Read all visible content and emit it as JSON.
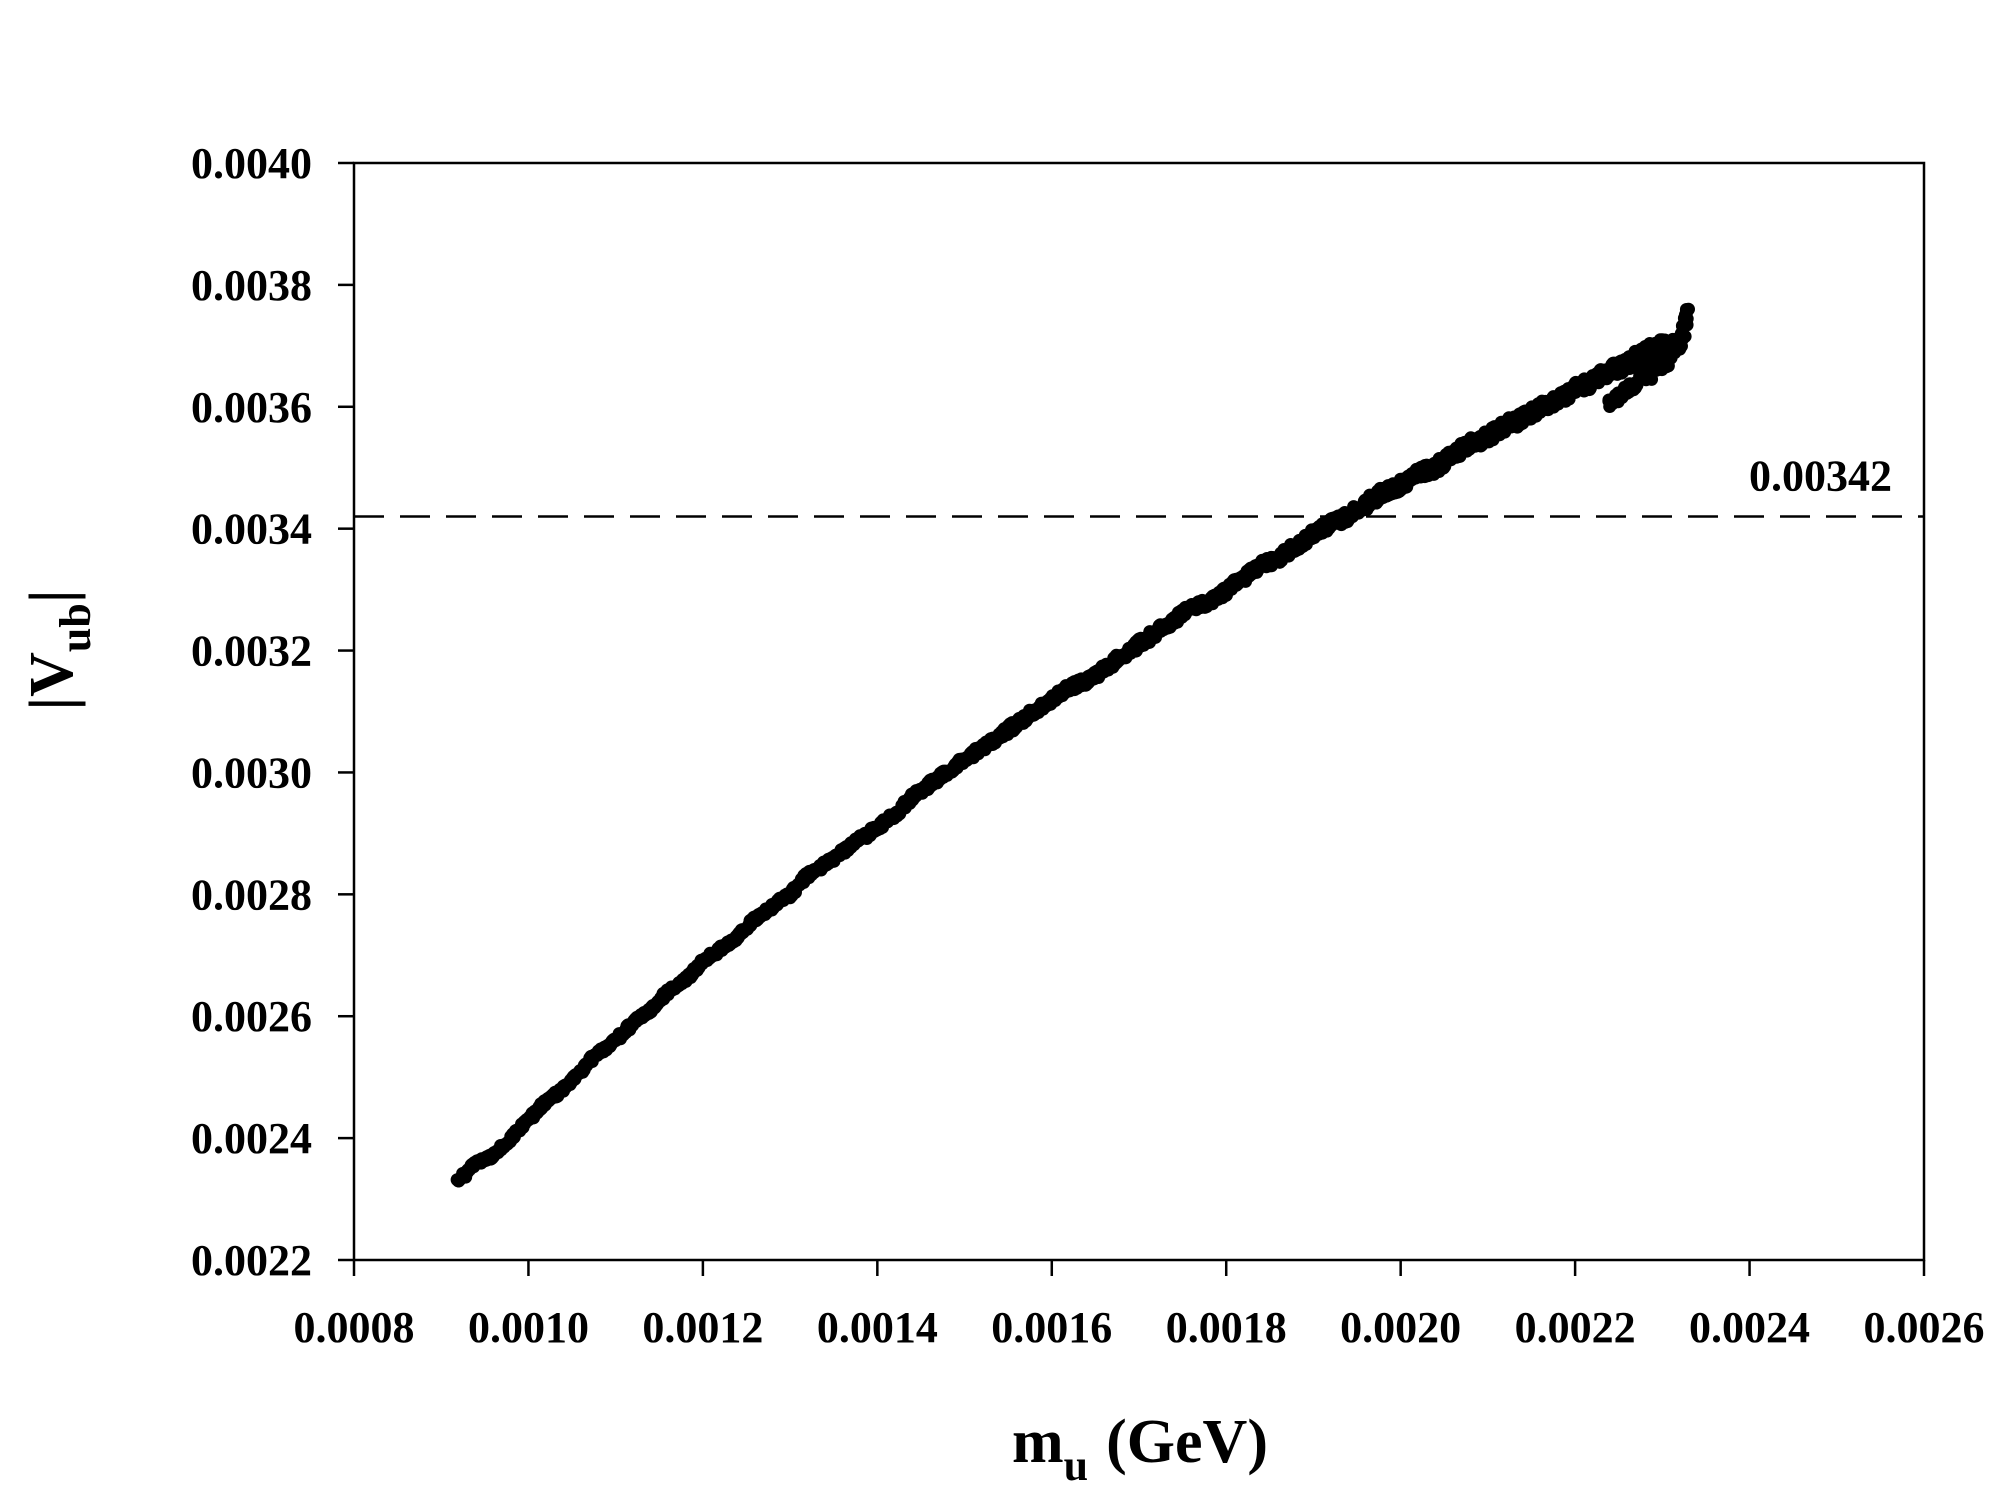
{
  "chart_data": {
    "type": "scatter",
    "title": "",
    "xlabel": {
      "main": "m",
      "sub": "u",
      "suffix": "(GeV)"
    },
    "ylabel": {
      "prefix": "|V",
      "sub": "ub",
      "suffix": "|"
    },
    "xlim": [
      0.0008,
      0.0026
    ],
    "ylim": [
      0.0022,
      0.004
    ],
    "x_ticks": [
      0.0008,
      0.001,
      0.0012,
      0.0014,
      0.0016,
      0.0018,
      0.002,
      0.0022,
      0.0024,
      0.0026
    ],
    "x_tick_labels": [
      "0.0008",
      "0.0010",
      "0.0012",
      "0.0014",
      "0.0016",
      "0.0018",
      "0.0020",
      "0.0022",
      "0.0024",
      "0.0026"
    ],
    "y_ticks": [
      0.0022,
      0.0024,
      0.0026,
      0.0028,
      0.003,
      0.0032,
      0.0034,
      0.0036,
      0.0038,
      0.004
    ],
    "y_tick_labels": [
      "0.0022",
      "0.0024",
      "0.0026",
      "0.0028",
      "0.0030",
      "0.0032",
      "0.0034",
      "0.0036",
      "0.0038",
      "0.0040"
    ],
    "grid": false,
    "legend": "none",
    "reference_line": {
      "y": 0.00342,
      "style": "dashed",
      "label": "0.00342"
    },
    "series": [
      {
        "color": "#000000",
        "points": [
          [
            0.00092,
            0.00233
          ],
          [
            0.00094,
            0.00236
          ],
          [
            0.00096,
            0.00237
          ],
          [
            0.00098,
            0.0024
          ],
          [
            0.001,
            0.00243
          ],
          [
            0.00102,
            0.00246
          ],
          [
            0.00104,
            0.00248
          ],
          [
            0.00106,
            0.00251
          ],
          [
            0.00108,
            0.00254
          ],
          [
            0.0011,
            0.00256
          ],
          [
            0.00112,
            0.00259
          ],
          [
            0.00114,
            0.00261
          ],
          [
            0.00116,
            0.00264
          ],
          [
            0.00118,
            0.00266
          ],
          [
            0.0012,
            0.00269
          ],
          [
            0.00122,
            0.00271
          ],
          [
            0.00124,
            0.00273
          ],
          [
            0.00126,
            0.00276
          ],
          [
            0.00128,
            0.00278
          ],
          [
            0.0013,
            0.0028
          ],
          [
            0.00132,
            0.00283
          ],
          [
            0.00134,
            0.00285
          ],
          [
            0.00136,
            0.00287
          ],
          [
            0.00138,
            0.00289
          ],
          [
            0.0014,
            0.00291
          ],
          [
            0.00142,
            0.00293
          ],
          [
            0.00144,
            0.00296
          ],
          [
            0.00146,
            0.00298
          ],
          [
            0.00148,
            0.003
          ],
          [
            0.0015,
            0.00302
          ],
          [
            0.00152,
            0.00304
          ],
          [
            0.00154,
            0.00306
          ],
          [
            0.00156,
            0.00308
          ],
          [
            0.00158,
            0.0031
          ],
          [
            0.0016,
            0.00312
          ],
          [
            0.00162,
            0.00314
          ],
          [
            0.00164,
            0.00315
          ],
          [
            0.00166,
            0.00317
          ],
          [
            0.00168,
            0.00319
          ],
          [
            0.0017,
            0.00321
          ],
          [
            0.00172,
            0.00323
          ],
          [
            0.00174,
            0.00325
          ],
          [
            0.00176,
            0.00327
          ],
          [
            0.00178,
            0.00328
          ],
          [
            0.0018,
            0.0033
          ],
          [
            0.00182,
            0.00332
          ],
          [
            0.00184,
            0.00334
          ],
          [
            0.00186,
            0.00335
          ],
          [
            0.00188,
            0.00337
          ],
          [
            0.0019,
            0.00339
          ],
          [
            0.00192,
            0.00341
          ],
          [
            0.00194,
            0.00342
          ],
          [
            0.00196,
            0.00344
          ],
          [
            0.00198,
            0.00346
          ],
          [
            0.002,
            0.00347
          ],
          [
            0.00202,
            0.00349
          ],
          [
            0.00204,
            0.0035
          ],
          [
            0.00206,
            0.00352
          ],
          [
            0.00208,
            0.00354
          ],
          [
            0.0021,
            0.00355
          ],
          [
            0.00212,
            0.00357
          ],
          [
            0.00214,
            0.00358
          ],
          [
            0.00216,
            0.0036
          ],
          [
            0.00218,
            0.00361
          ],
          [
            0.0022,
            0.00363
          ],
          [
            0.00222,
            0.00364
          ],
          [
            0.00224,
            0.00366
          ],
          [
            0.00226,
            0.00367
          ],
          [
            0.00228,
            0.00369
          ],
          [
            0.0023,
            0.0037
          ],
          [
            0.00232,
            0.0037
          ],
          [
            0.00233,
            0.00376
          ],
          [
            0.00224,
            0.00361
          ],
          [
            0.00227,
            0.00364
          ],
          [
            0.00231,
            0.00368
          ]
        ]
      }
    ]
  }
}
